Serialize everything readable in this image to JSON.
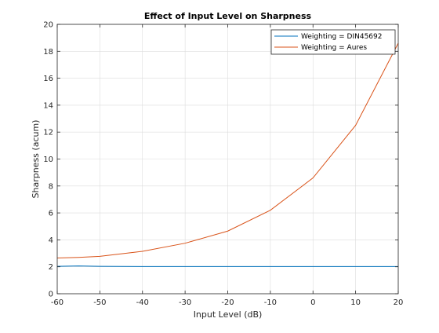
{
  "chart_data": {
    "type": "line",
    "title": "Effect of Input Level on Sharpness",
    "xlabel": "Input Level (dB)",
    "ylabel": "Sharpness (acum)",
    "xlim": [
      -60,
      20
    ],
    "ylim": [
      0,
      20
    ],
    "xticks": [
      -60,
      -50,
      -40,
      -30,
      -20,
      -10,
      0,
      10,
      20
    ],
    "yticks": [
      0,
      2,
      4,
      6,
      8,
      10,
      12,
      14,
      16,
      18,
      20
    ],
    "grid": true,
    "legend_position": "top-right",
    "series": [
      {
        "name": "Weighting = DIN45692",
        "color": "#0072bd",
        "x": [
          -60,
          -55,
          -50,
          -40,
          -30,
          -20,
          -10,
          0,
          10,
          20
        ],
        "y": [
          2.03,
          2.06,
          2.03,
          2.02,
          2.02,
          2.02,
          2.02,
          2.02,
          2.02,
          2.02
        ]
      },
      {
        "name": "Weighting = Aures",
        "color": "#d95319",
        "x": [
          -60,
          -55,
          -50,
          -40,
          -30,
          -20,
          -10,
          0,
          10,
          20
        ],
        "y": [
          2.65,
          2.7,
          2.78,
          3.15,
          3.75,
          4.65,
          6.2,
          8.6,
          12.5,
          18.6
        ]
      }
    ]
  }
}
